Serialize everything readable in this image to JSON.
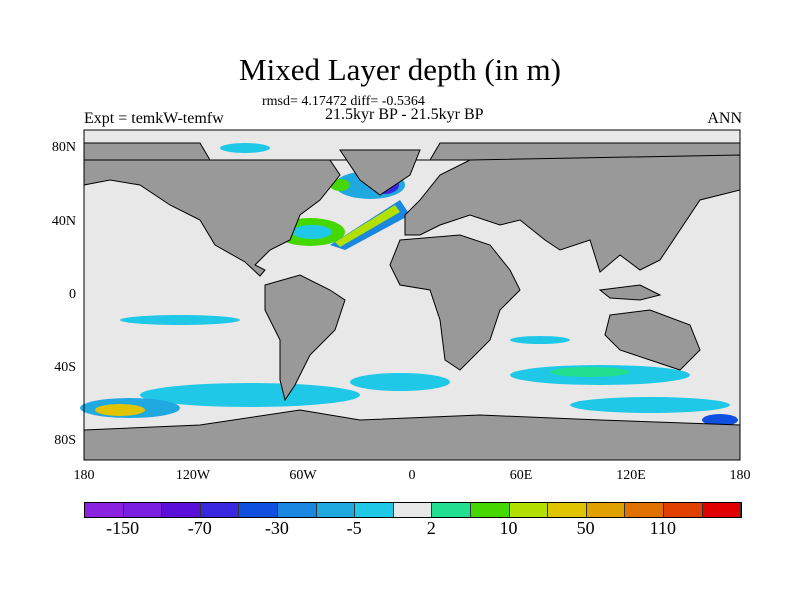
{
  "title": "Mixed Layer depth (in m)",
  "stats": "rmsd= 4.17472 diff= -0.5364",
  "period": "21.5kyr BP - 21.5kyr BP",
  "left_label": "Expt = temkW-temfw",
  "right_label": "ANN",
  "lat_ticks": [
    "80N",
    "40N",
    "0",
    "40S",
    "80S"
  ],
  "lon_ticks": [
    "180",
    "120W",
    "60W",
    "0",
    "60E",
    "120E",
    "180"
  ],
  "colors": {
    "land": "#999999",
    "ocean_no_change": "#e8e8e8"
  },
  "colorbar": {
    "colors": [
      "#8a22e0",
      "#7a1ee0",
      "#5a10d8",
      "#3a28e0",
      "#1050e0",
      "#1a88e0",
      "#20a8e0",
      "#20c8e8",
      "#e8e8e8",
      "#20e090",
      "#44d800",
      "#b4e000",
      "#e0c400",
      "#e0a000",
      "#e07000",
      "#e04000",
      "#e00000"
    ],
    "labels": [
      "-150",
      "-70",
      "-30",
      "-5",
      "2",
      "10",
      "50",
      "110"
    ]
  }
}
